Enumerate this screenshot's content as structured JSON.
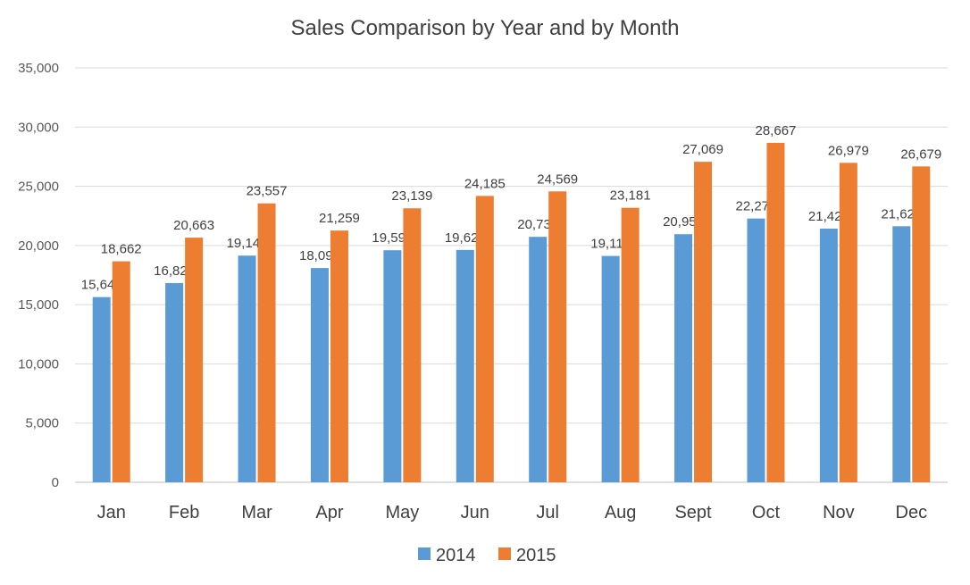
{
  "chart_data": {
    "type": "bar",
    "title": "Sales Comparison by Year and by Month",
    "xlabel": "",
    "ylabel": "",
    "categories": [
      "Jan",
      "Feb",
      "Mar",
      "Apr",
      "May",
      "Jun",
      "Jul",
      "Aug",
      "Sept",
      "Oct",
      "Nov",
      "Dec"
    ],
    "series": [
      {
        "name": "2014",
        "color": "#5b9bd5",
        "values": [
          15642,
          16828,
          19143,
          18094,
          19598,
          19622,
          20730,
          19116,
          20954,
          22278,
          21422,
          21625
        ]
      },
      {
        "name": "2015",
        "color": "#ed7d31",
        "values": [
          18662,
          20663,
          23557,
          21259,
          23139,
          24185,
          24569,
          23181,
          27069,
          28667,
          26979,
          26679
        ]
      }
    ],
    "ylim": [
      0,
      35000
    ],
    "yticks": [
      0,
      5000,
      10000,
      15000,
      20000,
      25000,
      30000,
      35000
    ],
    "ytick_labels": [
      "0",
      "5,000",
      "10,000",
      "15,000",
      "20,000",
      "25,000",
      "30,000",
      "35,000"
    ],
    "grid": true,
    "legend_position": "bottom",
    "data_labels": true
  }
}
